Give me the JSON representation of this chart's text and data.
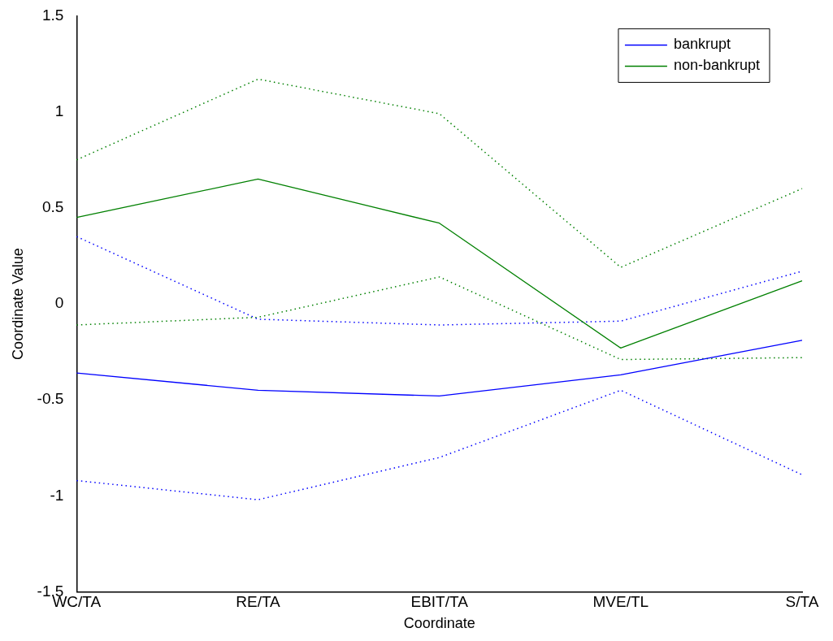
{
  "chart_data": {
    "type": "line",
    "xlabel": "Coordinate",
    "ylabel": "Coordinate Value",
    "categories": [
      "WC/TA",
      "RE/TA",
      "EBIT/TA",
      "MVE/TL",
      "S/TA"
    ],
    "series": [
      {
        "name": "bankrupt",
        "color": "#0000ff",
        "values": [
          -0.36,
          -0.45,
          -0.48,
          -0.37,
          -0.19
        ],
        "line_style": "solid"
      },
      {
        "name": "non-bankrupt",
        "color": "#008000",
        "values": [
          0.45,
          0.65,
          0.42,
          -0.23,
          0.12
        ],
        "line_style": "solid"
      },
      {
        "color": "#0000ff",
        "values": [
          0.35,
          -0.08,
          -0.11,
          -0.09,
          0.17
        ],
        "line_style": "dotted"
      },
      {
        "color": "#0000ff",
        "values": [
          -0.92,
          -1.02,
          -0.8,
          -0.45,
          -0.89
        ],
        "line_style": "dotted"
      },
      {
        "color": "#008000",
        "values": [
          0.75,
          1.17,
          0.99,
          0.19,
          0.6
        ],
        "line_style": "dotted"
      },
      {
        "color": "#008000",
        "values": [
          -0.11,
          -0.07,
          0.14,
          -0.29,
          -0.28
        ],
        "line_style": "dotted"
      }
    ],
    "ylim": [
      -1.5,
      1.5
    ],
    "yticks": [
      -1.5,
      -1,
      -0.5,
      0,
      0.5,
      1,
      1.5
    ],
    "grid": false,
    "legend": "top right",
    "marker": "none"
  }
}
